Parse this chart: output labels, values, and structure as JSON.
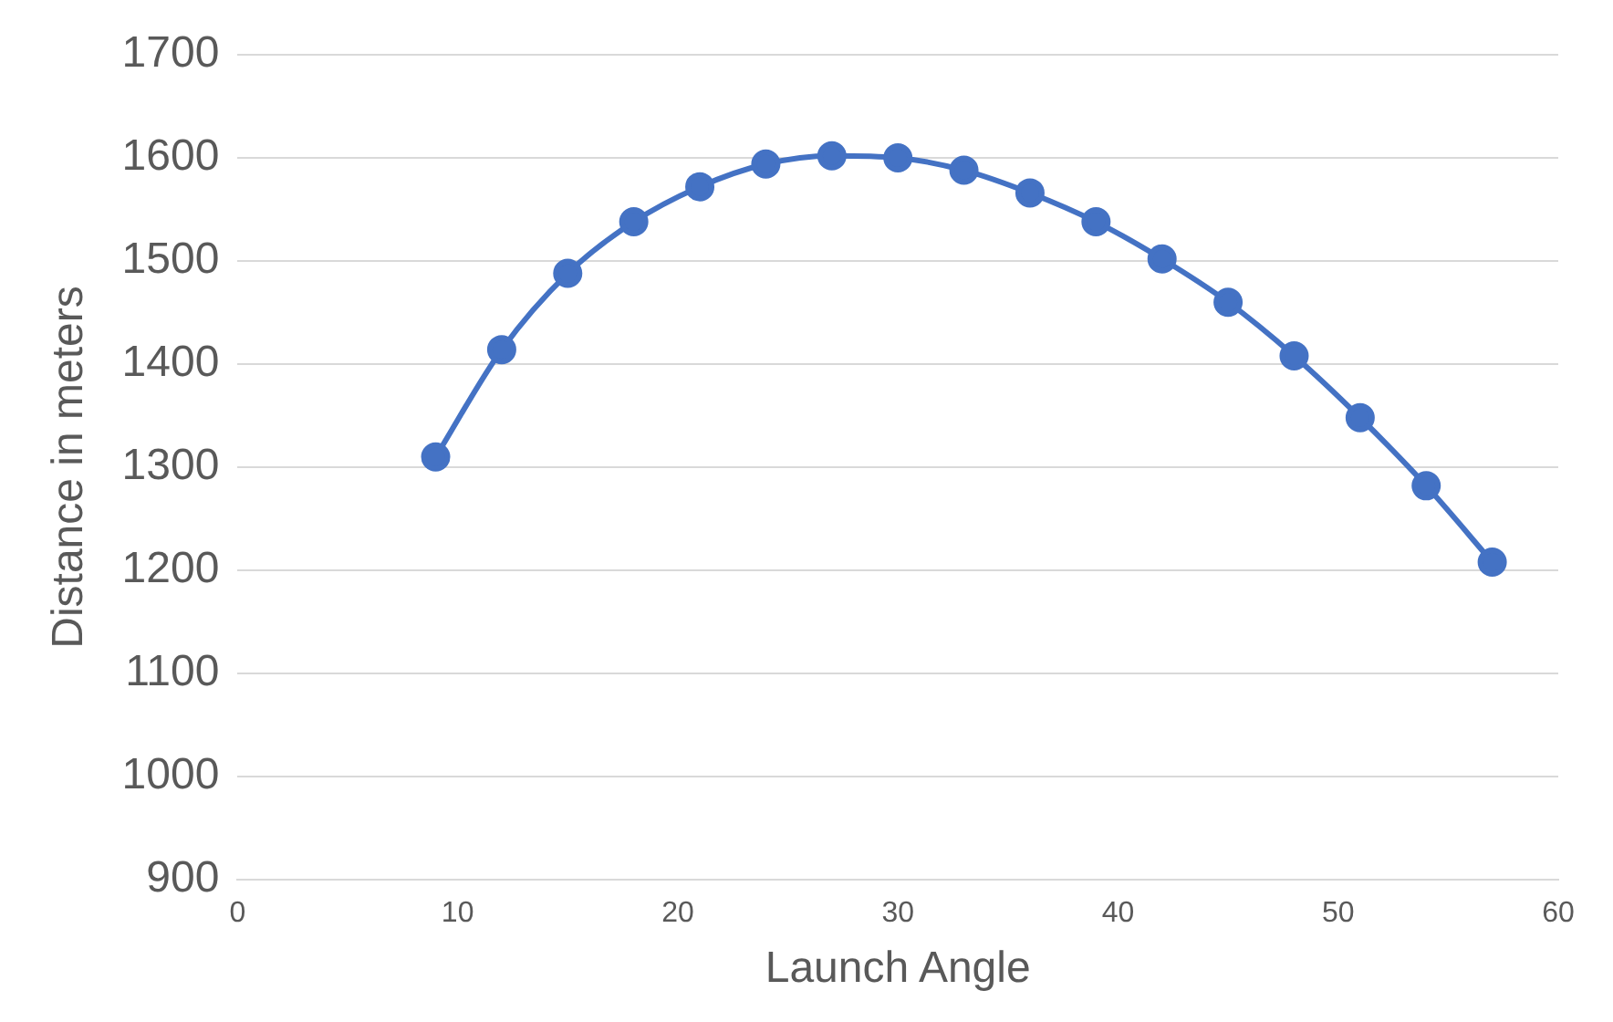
{
  "chart_data": {
    "type": "line",
    "xlabel": "Launch Angle",
    "ylabel": "Distance in meters",
    "x": [
      9,
      12,
      15,
      18,
      21,
      24,
      27,
      30,
      33,
      36,
      39,
      42,
      45,
      48,
      51,
      54,
      57
    ],
    "values": [
      1310,
      1414,
      1488,
      1538,
      1572,
      1594,
      1602,
      1600,
      1588,
      1566,
      1538,
      1502,
      1460,
      1408,
      1348,
      1282,
      1208
    ],
    "color": "#4472c4",
    "xlim": [
      0,
      60
    ],
    "xticks": [
      0,
      10,
      20,
      30,
      40,
      50,
      60
    ],
    "ylim": [
      900,
      1700
    ],
    "yticks": [
      900,
      1000,
      1100,
      1200,
      1300,
      1400,
      1500,
      1600,
      1700
    ],
    "grid": "y",
    "marker": "circle",
    "line_style": "solid"
  }
}
